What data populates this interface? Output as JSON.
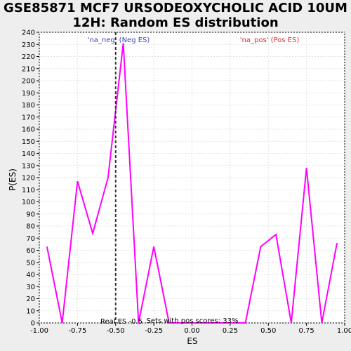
{
  "chart_data": {
    "type": "line",
    "title_line1": "GSE85871 MCF7 URSODEOXYCHOLIC ACID 10UM",
    "title_line2": "12H: Random ES distribution",
    "xlabel": "ES",
    "ylabel": "P(ES)",
    "xlim": [
      -1.0,
      1.0
    ],
    "ylim": [
      0,
      240
    ],
    "x_ticks": [
      "-1.00",
      "-0.75",
      "-0.50",
      "-0.25",
      "0.00",
      "0.25",
      "0.50",
      "0.75",
      "1.00"
    ],
    "x_tick_values": [
      -1.0,
      -0.75,
      -0.5,
      -0.25,
      0.0,
      0.25,
      0.5,
      0.75,
      1.0
    ],
    "y_ticks": [
      0,
      10,
      20,
      30,
      40,
      50,
      60,
      70,
      80,
      90,
      100,
      110,
      120,
      130,
      140,
      150,
      160,
      170,
      180,
      190,
      200,
      210,
      220,
      230,
      240
    ],
    "grid": true,
    "series": [
      {
        "color": "#ff00ff",
        "x": [
          -0.95,
          -0.85,
          -0.75,
          -0.65,
          -0.55,
          -0.45,
          -0.35,
          -0.25,
          -0.15,
          -0.05,
          0.05,
          0.15,
          0.25,
          0.35,
          0.45,
          0.55,
          0.65,
          0.75,
          0.85,
          0.95
        ],
        "y": [
          63,
          0,
          117,
          74,
          120,
          231,
          0,
          63,
          0,
          0,
          0,
          0,
          0,
          0,
          63,
          73,
          0,
          128,
          0,
          66
        ]
      }
    ],
    "real_es": -0.5,
    "real_es_label": "Real ES -0.5",
    "pos_scores_label": "Sets with pos scores: 33%",
    "neg_label": "'na_neg' (Neg ES)",
    "pos_label": "'na_pos' (Pos ES)",
    "neg_color": "#4040c0",
    "pos_color": "#e03030"
  }
}
